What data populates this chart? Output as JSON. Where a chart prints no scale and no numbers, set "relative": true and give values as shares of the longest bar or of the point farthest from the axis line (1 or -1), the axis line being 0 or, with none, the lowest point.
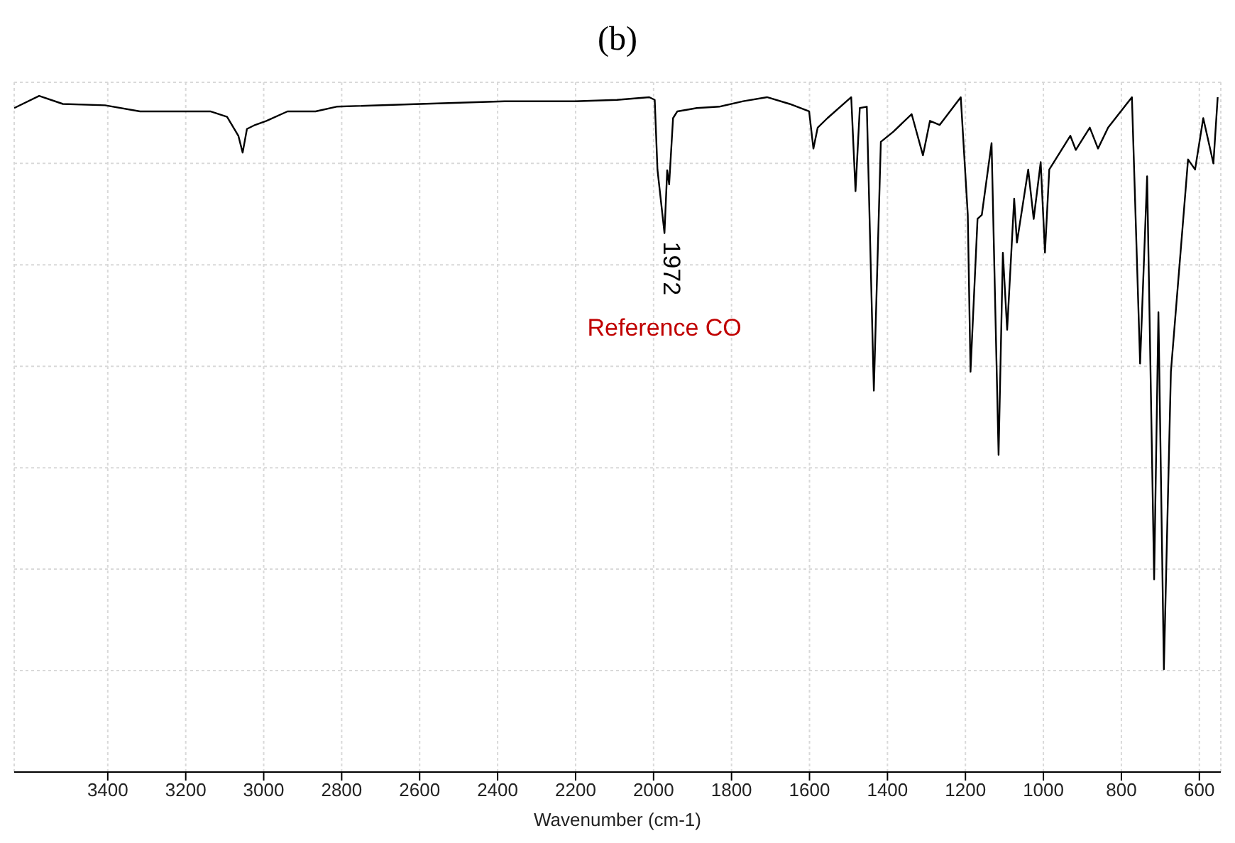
{
  "chart_data": {
    "type": "line",
    "title": "(b)",
    "xlabel": "Wavenumber (cm-1)",
    "relative": true,
    "grid": true,
    "xlim": [
      3640,
      545
    ],
    "xticks": [
      3400,
      3200,
      3000,
      2800,
      2600,
      2400,
      2200,
      2000,
      1800,
      1600,
      1400,
      1200,
      1000,
      800,
      600
    ],
    "annotations": [
      {
        "text": "1972",
        "x": 1972,
        "y": 0.797
      },
      "Reference CO"
    ],
    "series": [
      {
        "color": "#000000",
        "x": [
          3640,
          3576,
          3515,
          3407,
          3317,
          3137,
          3094,
          3065,
          3054,
          3043,
          3022,
          2993,
          2939,
          2867,
          2813,
          2598,
          2382,
          2202,
          2094,
          2011,
          1997,
          1990,
          1972,
          1965,
          1960,
          1950,
          1939,
          1889,
          1831,
          1770,
          1709,
          1651,
          1601,
          1590,
          1579,
          1554,
          1493,
          1482,
          1471,
          1453,
          1435,
          1417,
          1385,
          1338,
          1309,
          1291,
          1266,
          1212,
          1194,
          1187,
          1169,
          1158,
          1133,
          1115,
          1104,
          1093,
          1075,
          1068,
          1039,
          1025,
          1007,
          996,
          985,
          931,
          917,
          881,
          860,
          834,
          773,
          752,
          734,
          716,
          705,
          691,
          673,
          629,
          611,
          590,
          564,
          553
        ],
        "values": [
          0.982,
          1.0,
          0.988,
          0.986,
          0.977,
          0.977,
          0.969,
          0.941,
          0.916,
          0.951,
          0.957,
          0.963,
          0.977,
          0.977,
          0.984,
          0.988,
          0.992,
          0.992,
          0.994,
          0.998,
          0.994,
          0.891,
          0.797,
          0.89,
          0.869,
          0.967,
          0.977,
          0.982,
          0.984,
          0.992,
          0.998,
          0.988,
          0.977,
          0.922,
          0.953,
          0.967,
          0.998,
          0.859,
          0.982,
          0.984,
          0.564,
          0.932,
          0.947,
          0.973,
          0.912,
          0.963,
          0.957,
          0.998,
          0.824,
          0.592,
          0.818,
          0.824,
          0.93,
          0.469,
          0.768,
          0.654,
          0.848,
          0.783,
          0.891,
          0.818,
          0.902,
          0.768,
          0.891,
          0.941,
          0.92,
          0.953,
          0.922,
          0.953,
          0.998,
          0.604,
          0.881,
          0.285,
          0.68,
          0.152,
          0.592,
          0.906,
          0.891,
          0.967,
          0.9,
          0.998
        ]
      }
    ]
  }
}
